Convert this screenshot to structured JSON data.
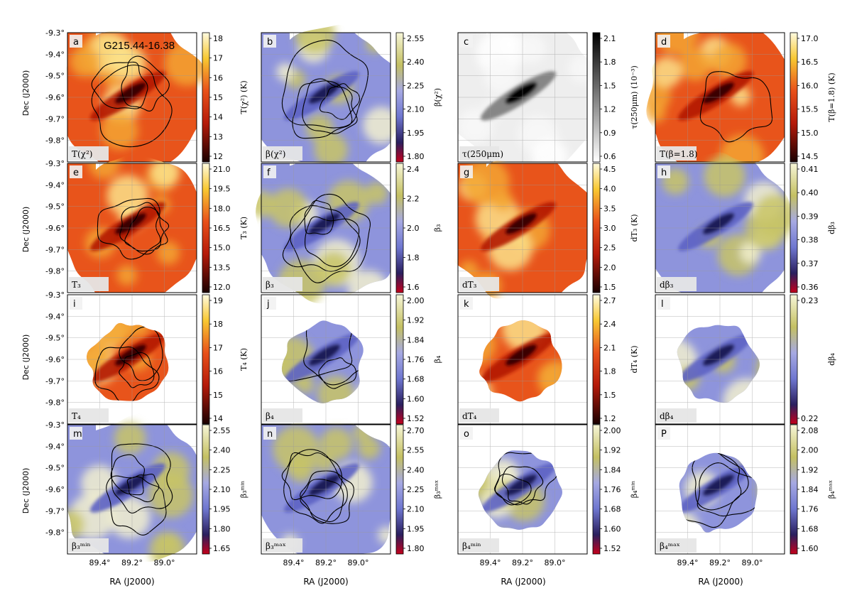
{
  "figure": {
    "title": "G215.44-16.38",
    "dec_axis_label": "Dec (J2000)",
    "ra_axis_label": "RA (J2000)",
    "dec_ticks": [
      "-9.3°",
      "-9.4°",
      "-9.5°",
      "-9.6°",
      "-9.7°",
      "-9.8°"
    ],
    "ra_ticks": [
      "89.4°",
      "89.2°",
      "89.0°"
    ]
  },
  "chart_data": [
    {
      "type": "heatmap",
      "id": "a",
      "letter": "a",
      "tag": "T(χ²)",
      "cbar_label": "T(χ²) (K)",
      "cmap": "hot",
      "footprint": "full",
      "contours": 3,
      "ticks": [
        "18",
        "17",
        "16",
        "15",
        "14",
        "13",
        "12"
      ]
    },
    {
      "type": "heatmap",
      "id": "b",
      "letter": "b",
      "tag": "β(χ²)",
      "cbar_label": "β(χ²)",
      "cmap": "div",
      "footprint": "full",
      "contours": 4,
      "ticks": [
        "2.55",
        "2.40",
        "2.25",
        "2.10",
        "1.95",
        "1.80"
      ]
    },
    {
      "type": "heatmap",
      "id": "c",
      "letter": "c",
      "tag": "τ(250μm)",
      "cbar_label": "τ(250μm) (10⁻³)",
      "cmap": "gray",
      "footprint": "full",
      "contours": 0,
      "ticks": [
        "2.1",
        "1.8",
        "1.5",
        "1.2",
        "0.9",
        "0.6"
      ]
    },
    {
      "type": "heatmap",
      "id": "d",
      "letter": "d",
      "tag": "T(β=1.8)",
      "cbar_label": "T(β=1.8) (K)",
      "cmap": "hot",
      "footprint": "full",
      "contours": 1,
      "ticks": [
        "17.0",
        "16.5",
        "16.0",
        "15.5",
        "15.0",
        "14.5"
      ]
    },
    {
      "type": "heatmap",
      "id": "e",
      "letter": "e",
      "tag": "T₃",
      "cbar_label": "T₃ (K)",
      "cmap": "hot",
      "footprint": "full",
      "contours": 3,
      "ticks": [
        "21.0",
        "19.5",
        "18.0",
        "16.5",
        "15.0",
        "13.5",
        "12.0"
      ]
    },
    {
      "type": "heatmap",
      "id": "f",
      "letter": "f",
      "tag": "β₃",
      "cbar_label": "β₃",
      "cmap": "div",
      "footprint": "full",
      "contours": 4,
      "ticks": [
        "2.4",
        "2.2",
        "2.0",
        "1.8",
        "1.6"
      ]
    },
    {
      "type": "heatmap",
      "id": "g",
      "letter": "g",
      "tag": "dT₃",
      "cbar_label": "dT₃ (K)",
      "cmap": "hot",
      "footprint": "full",
      "contours": 0,
      "ticks": [
        "4.5",
        "4.0",
        "3.5",
        "3.0",
        "2.5",
        "2.0",
        "1.5"
      ]
    },
    {
      "type": "heatmap",
      "id": "h",
      "letter": "h",
      "tag": "dβ₃",
      "cbar_label": "dβ₃",
      "cmap": "div",
      "footprint": "full",
      "contours": 0,
      "ticks": [
        "0.41",
        "0.40",
        "0.39",
        "0.38",
        "0.37",
        "0.36"
      ]
    },
    {
      "type": "heatmap",
      "id": "i",
      "letter": "i",
      "tag": "T₄",
      "cbar_label": "T₄ (K)",
      "cmap": "hot",
      "footprint": "small",
      "contours": 3,
      "ticks": [
        "19",
        "18",
        "17",
        "16",
        "15",
        "14"
      ]
    },
    {
      "type": "heatmap",
      "id": "j",
      "letter": "j",
      "tag": "β₄",
      "cbar_label": "β₄",
      "cmap": "div",
      "footprint": "small",
      "contours": 3,
      "ticks": [
        "2.00",
        "1.92",
        "1.84",
        "1.76",
        "1.68",
        "1.60",
        "1.52"
      ]
    },
    {
      "type": "heatmap",
      "id": "k",
      "letter": "k",
      "tag": "dT₄",
      "cbar_label": "dT₄ (K)",
      "cmap": "hot",
      "footprint": "small",
      "contours": 0,
      "ticks": [
        "2.7",
        "2.4",
        "2.1",
        "1.8",
        "1.5",
        "1.2"
      ]
    },
    {
      "type": "heatmap",
      "id": "l",
      "letter": "l",
      "tag": "dβ₄",
      "cbar_label": "dβ₄",
      "cmap": "div",
      "footprint": "small",
      "contours": 0,
      "ticks": [
        "0.23",
        "0.22"
      ]
    },
    {
      "type": "heatmap",
      "id": "m",
      "letter": "m",
      "tag": "β₃ᵐⁱⁿ",
      "cbar_label": "β₃ᵐⁱⁿ",
      "cmap": "div",
      "footprint": "full",
      "contours": 4,
      "ticks": [
        "2.55",
        "2.40",
        "2.25",
        "2.10",
        "1.95",
        "1.80",
        "1.65"
      ]
    },
    {
      "type": "heatmap",
      "id": "n",
      "letter": "n",
      "tag": "β₃ᵐᵃˣ",
      "cbar_label": "β₃ᵐᵃˣ",
      "cmap": "div",
      "footprint": "full",
      "contours": 4,
      "ticks": [
        "2.70",
        "2.55",
        "2.40",
        "2.25",
        "2.10",
        "1.95",
        "1.80"
      ]
    },
    {
      "type": "heatmap",
      "id": "o",
      "letter": "o",
      "tag": "β₄ᵐⁱⁿ",
      "cbar_label": "β₄ᵐⁱⁿ",
      "cmap": "div",
      "footprint": "small",
      "contours": 3,
      "ticks": [
        "2.00",
        "1.92",
        "1.84",
        "1.76",
        "1.68",
        "1.60",
        "1.52"
      ]
    },
    {
      "type": "heatmap",
      "id": "p",
      "letter": "P",
      "tag": "β₄ᵐᵃˣ",
      "cbar_label": "β₄ᵐᵃˣ",
      "cmap": "div",
      "footprint": "small",
      "contours": 3,
      "ticks": [
        "2.08",
        "2.00",
        "1.92",
        "1.84",
        "1.76",
        "1.68",
        "1.60"
      ]
    }
  ]
}
